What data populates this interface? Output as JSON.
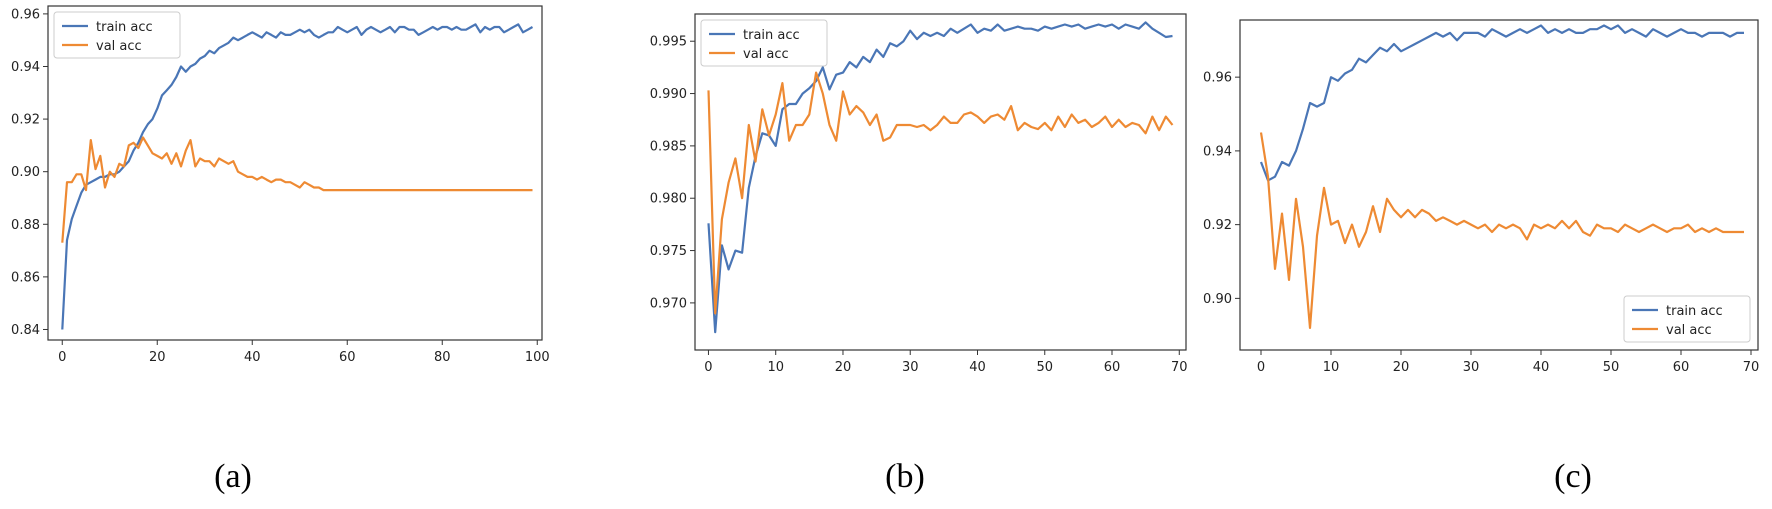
{
  "colors": {
    "train": "#4a76b6",
    "val": "#ee8a33",
    "axis": "#333333"
  },
  "chart_data": [
    {
      "type": "line",
      "caption": "(a)",
      "xlim": [
        -3,
        101
      ],
      "ylim": [
        0.836,
        0.963
      ],
      "xticks": [
        0,
        20,
        40,
        60,
        80,
        100
      ],
      "xtick_labels": [
        "0",
        "20",
        "40",
        "60",
        "80",
        "100"
      ],
      "yticks": [
        0.84,
        0.86,
        0.88,
        0.9,
        0.92,
        0.94,
        0.96
      ],
      "ytick_labels": [
        "0.84",
        "0.86",
        "0.88",
        "0.90",
        "0.92",
        "0.94",
        "0.96"
      ],
      "legend_loc": "upper-left",
      "grid": false,
      "series": [
        {
          "name": "train acc",
          "x": [
            0,
            1,
            2,
            3,
            4,
            5,
            6,
            7,
            8,
            9,
            10,
            11,
            12,
            13,
            14,
            15,
            16,
            17,
            18,
            19,
            20,
            21,
            22,
            23,
            24,
            25,
            26,
            27,
            28,
            29,
            30,
            31,
            32,
            33,
            34,
            35,
            36,
            37,
            38,
            39,
            40,
            41,
            42,
            43,
            44,
            45,
            46,
            47,
            48,
            49,
            50,
            51,
            52,
            53,
            54,
            55,
            56,
            57,
            58,
            59,
            60,
            61,
            62,
            63,
            64,
            65,
            66,
            67,
            68,
            69,
            70,
            71,
            72,
            73,
            74,
            75,
            76,
            77,
            78,
            79,
            80,
            81,
            82,
            83,
            84,
            85,
            86,
            87,
            88,
            89,
            90,
            91,
            92,
            93,
            94,
            95,
            96,
            97,
            98,
            99
          ],
          "y": [
            0.84,
            0.874,
            0.882,
            0.887,
            0.892,
            0.895,
            0.896,
            0.897,
            0.898,
            0.898,
            0.899,
            0.899,
            0.9,
            0.902,
            0.904,
            0.908,
            0.911,
            0.915,
            0.918,
            0.92,
            0.924,
            0.929,
            0.931,
            0.933,
            0.936,
            0.94,
            0.938,
            0.94,
            0.941,
            0.943,
            0.944,
            0.946,
            0.945,
            0.947,
            0.948,
            0.949,
            0.951,
            0.95,
            0.951,
            0.952,
            0.953,
            0.952,
            0.951,
            0.953,
            0.952,
            0.951,
            0.953,
            0.952,
            0.952,
            0.953,
            0.954,
            0.953,
            0.954,
            0.952,
            0.951,
            0.952,
            0.953,
            0.953,
            0.955,
            0.954,
            0.953,
            0.954,
            0.955,
            0.952,
            0.954,
            0.955,
            0.954,
            0.953,
            0.954,
            0.955,
            0.953,
            0.955,
            0.955,
            0.954,
            0.954,
            0.952,
            0.953,
            0.954,
            0.955,
            0.954,
            0.955,
            0.955,
            0.954,
            0.955,
            0.954,
            0.954,
            0.955,
            0.956,
            0.953,
            0.955,
            0.954,
            0.955,
            0.955,
            0.953,
            0.954,
            0.955,
            0.956,
            0.953,
            0.954,
            0.955
          ]
        },
        {
          "name": "val acc",
          "x": [
            0,
            1,
            2,
            3,
            4,
            5,
            6,
            7,
            8,
            9,
            10,
            11,
            12,
            13,
            14,
            15,
            16,
            17,
            18,
            19,
            20,
            21,
            22,
            23,
            24,
            25,
            26,
            27,
            28,
            29,
            30,
            31,
            32,
            33,
            34,
            35,
            36,
            37,
            38,
            39,
            40,
            41,
            42,
            43,
            44,
            45,
            46,
            47,
            48,
            49,
            50,
            51,
            52,
            53,
            54,
            55,
            56,
            57,
            58,
            59,
            60,
            61,
            62,
            63,
            64,
            65,
            66,
            67,
            68,
            69,
            70,
            71,
            72,
            73,
            74,
            75,
            76,
            77,
            78,
            79,
            80,
            81,
            82,
            83,
            84,
            85,
            86,
            87,
            88,
            89,
            90,
            91,
            92,
            93,
            94,
            95,
            96,
            97,
            98,
            99
          ],
          "y": [
            0.873,
            0.896,
            0.896,
            0.899,
            0.899,
            0.893,
            0.912,
            0.901,
            0.906,
            0.894,
            0.9,
            0.898,
            0.903,
            0.902,
            0.91,
            0.911,
            0.909,
            0.913,
            0.91,
            0.907,
            0.906,
            0.905,
            0.907,
            0.903,
            0.907,
            0.902,
            0.908,
            0.912,
            0.902,
            0.905,
            0.904,
            0.904,
            0.902,
            0.905,
            0.904,
            0.903,
            0.904,
            0.9,
            0.899,
            0.898,
            0.898,
            0.897,
            0.898,
            0.897,
            0.896,
            0.897,
            0.897,
            0.896,
            0.896,
            0.895,
            0.894,
            0.896,
            0.895,
            0.894,
            0.894,
            0.893,
            0.893,
            0.893,
            0.893,
            0.893,
            0.893,
            0.893,
            0.893,
            0.893,
            0.893,
            0.893,
            0.893,
            0.893,
            0.893,
            0.893,
            0.893,
            0.893,
            0.893,
            0.893,
            0.893,
            0.893,
            0.893,
            0.893,
            0.893,
            0.893,
            0.893,
            0.893,
            0.893,
            0.893,
            0.893,
            0.893,
            0.893,
            0.893,
            0.893,
            0.893,
            0.893,
            0.893,
            0.893,
            0.893,
            0.893,
            0.893,
            0.893,
            0.893,
            0.893,
            0.893
          ]
        }
      ]
    },
    {
      "type": "line",
      "caption": "(b)",
      "xlim": [
        -2,
        71
      ],
      "ylim": [
        0.9655,
        0.9976
      ],
      "xticks": [
        0,
        10,
        20,
        30,
        40,
        50,
        60,
        70
      ],
      "xtick_labels": [
        "0",
        "10",
        "20",
        "30",
        "40",
        "50",
        "60",
        "70"
      ],
      "yticks": [
        0.97,
        0.975,
        0.98,
        0.985,
        0.99,
        0.995
      ],
      "ytick_labels": [
        "0.970",
        "0.975",
        "0.980",
        "0.985",
        "0.990",
        "0.995"
      ],
      "legend_loc": "upper-left",
      "grid": false,
      "series": [
        {
          "name": "train acc",
          "x": [
            0,
            1,
            2,
            3,
            4,
            5,
            6,
            7,
            8,
            9,
            10,
            11,
            12,
            13,
            14,
            15,
            16,
            17,
            18,
            19,
            20,
            21,
            22,
            23,
            24,
            25,
            26,
            27,
            28,
            29,
            30,
            31,
            32,
            33,
            34,
            35,
            36,
            37,
            38,
            39,
            40,
            41,
            42,
            43,
            44,
            45,
            46,
            47,
            48,
            49,
            50,
            51,
            52,
            53,
            54,
            55,
            56,
            57,
            58,
            59,
            60,
            61,
            62,
            63,
            64,
            65,
            66,
            67,
            68,
            69
          ],
          "y": [
            0.9776,
            0.9672,
            0.9755,
            0.9732,
            0.975,
            0.9748,
            0.981,
            0.984,
            0.9862,
            0.986,
            0.985,
            0.9885,
            0.989,
            0.989,
            0.99,
            0.9905,
            0.9912,
            0.9925,
            0.9904,
            0.9918,
            0.992,
            0.993,
            0.9925,
            0.9935,
            0.993,
            0.9942,
            0.9935,
            0.9948,
            0.9945,
            0.995,
            0.996,
            0.9952,
            0.9958,
            0.9955,
            0.9958,
            0.9955,
            0.9962,
            0.9958,
            0.9962,
            0.9966,
            0.9958,
            0.9962,
            0.996,
            0.9966,
            0.996,
            0.9962,
            0.9964,
            0.9962,
            0.9962,
            0.996,
            0.9964,
            0.9962,
            0.9964,
            0.9966,
            0.9964,
            0.9966,
            0.9962,
            0.9964,
            0.9966,
            0.9964,
            0.9966,
            0.9962,
            0.9966,
            0.9964,
            0.9962,
            0.9968,
            0.9962,
            0.9958,
            0.9954,
            0.9955
          ]
        },
        {
          "name": "val acc",
          "x": [
            0,
            1,
            2,
            3,
            4,
            5,
            6,
            7,
            8,
            9,
            10,
            11,
            12,
            13,
            14,
            15,
            16,
            17,
            18,
            19,
            20,
            21,
            22,
            23,
            24,
            25,
            26,
            27,
            28,
            29,
            30,
            31,
            32,
            33,
            34,
            35,
            36,
            37,
            38,
            39,
            40,
            41,
            42,
            43,
            44,
            45,
            46,
            47,
            48,
            49,
            50,
            51,
            52,
            53,
            54,
            55,
            56,
            57,
            58,
            59,
            60,
            61,
            62,
            63,
            64,
            65,
            66,
            67,
            68,
            69
          ],
          "y": [
            0.9903,
            0.969,
            0.978,
            0.9815,
            0.9838,
            0.98,
            0.987,
            0.9835,
            0.9885,
            0.986,
            0.988,
            0.991,
            0.9855,
            0.987,
            0.987,
            0.988,
            0.992,
            0.99,
            0.987,
            0.9855,
            0.9902,
            0.988,
            0.9888,
            0.9882,
            0.987,
            0.988,
            0.9855,
            0.9858,
            0.987,
            0.987,
            0.987,
            0.9868,
            0.987,
            0.9865,
            0.987,
            0.9878,
            0.9872,
            0.9872,
            0.988,
            0.9882,
            0.9878,
            0.9872,
            0.9878,
            0.988,
            0.9875,
            0.9888,
            0.9865,
            0.9872,
            0.9868,
            0.9866,
            0.9872,
            0.9865,
            0.9878,
            0.9868,
            0.988,
            0.9872,
            0.9875,
            0.9868,
            0.9872,
            0.9878,
            0.9868,
            0.9875,
            0.9868,
            0.9872,
            0.987,
            0.9862,
            0.9878,
            0.9865,
            0.9878,
            0.987
          ]
        }
      ]
    },
    {
      "type": "line",
      "caption": "(c)",
      "xlim": [
        -3,
        71
      ],
      "ylim": [
        0.886,
        0.9755
      ],
      "xticks": [
        0,
        10,
        20,
        30,
        40,
        50,
        60,
        70
      ],
      "xtick_labels": [
        "0",
        "10",
        "20",
        "30",
        "40",
        "50",
        "60",
        "70"
      ],
      "yticks": [
        0.9,
        0.92,
        0.94,
        0.96
      ],
      "ytick_labels": [
        "0.90",
        "0.92",
        "0.94",
        "0.96"
      ],
      "legend_loc": "lower-right",
      "grid": false,
      "series": [
        {
          "name": "train acc",
          "x": [
            0,
            1,
            2,
            3,
            4,
            5,
            6,
            7,
            8,
            9,
            10,
            11,
            12,
            13,
            14,
            15,
            16,
            17,
            18,
            19,
            20,
            21,
            22,
            23,
            24,
            25,
            26,
            27,
            28,
            29,
            30,
            31,
            32,
            33,
            34,
            35,
            36,
            37,
            38,
            39,
            40,
            41,
            42,
            43,
            44,
            45,
            46,
            47,
            48,
            49,
            50,
            51,
            52,
            53,
            54,
            55,
            56,
            57,
            58,
            59,
            60,
            61,
            62,
            63,
            64,
            65,
            66,
            67,
            68,
            69
          ],
          "y": [
            0.937,
            0.932,
            0.933,
            0.937,
            0.936,
            0.94,
            0.946,
            0.953,
            0.952,
            0.953,
            0.96,
            0.959,
            0.961,
            0.962,
            0.965,
            0.964,
            0.966,
            0.968,
            0.967,
            0.969,
            0.967,
            0.968,
            0.969,
            0.97,
            0.971,
            0.972,
            0.971,
            0.972,
            0.97,
            0.972,
            0.972,
            0.972,
            0.971,
            0.973,
            0.972,
            0.971,
            0.972,
            0.973,
            0.972,
            0.973,
            0.974,
            0.972,
            0.973,
            0.972,
            0.973,
            0.972,
            0.972,
            0.973,
            0.973,
            0.974,
            0.973,
            0.974,
            0.972,
            0.973,
            0.972,
            0.971,
            0.973,
            0.972,
            0.971,
            0.972,
            0.973,
            0.972,
            0.972,
            0.971,
            0.972,
            0.972,
            0.972,
            0.971,
            0.972,
            0.972
          ]
        },
        {
          "name": "val acc",
          "x": [
            0,
            1,
            2,
            3,
            4,
            5,
            6,
            7,
            8,
            9,
            10,
            11,
            12,
            13,
            14,
            15,
            16,
            17,
            18,
            19,
            20,
            21,
            22,
            23,
            24,
            25,
            26,
            27,
            28,
            29,
            30,
            31,
            32,
            33,
            34,
            35,
            36,
            37,
            38,
            39,
            40,
            41,
            42,
            43,
            44,
            45,
            46,
            47,
            48,
            49,
            50,
            51,
            52,
            53,
            54,
            55,
            56,
            57,
            58,
            59,
            60,
            61,
            62,
            63,
            64,
            65,
            66,
            67,
            68,
            69
          ],
          "y": [
            0.945,
            0.933,
            0.908,
            0.923,
            0.905,
            0.927,
            0.914,
            0.892,
            0.917,
            0.93,
            0.92,
            0.921,
            0.915,
            0.92,
            0.914,
            0.918,
            0.925,
            0.918,
            0.927,
            0.924,
            0.922,
            0.924,
            0.922,
            0.924,
            0.923,
            0.921,
            0.922,
            0.921,
            0.92,
            0.921,
            0.92,
            0.919,
            0.92,
            0.918,
            0.92,
            0.919,
            0.92,
            0.919,
            0.916,
            0.92,
            0.919,
            0.92,
            0.919,
            0.921,
            0.919,
            0.921,
            0.918,
            0.917,
            0.92,
            0.919,
            0.919,
            0.918,
            0.92,
            0.919,
            0.918,
            0.919,
            0.92,
            0.919,
            0.918,
            0.919,
            0.919,
            0.92,
            0.918,
            0.919,
            0.918,
            0.919,
            0.918,
            0.918,
            0.918,
            0.918
          ]
        }
      ]
    }
  ]
}
